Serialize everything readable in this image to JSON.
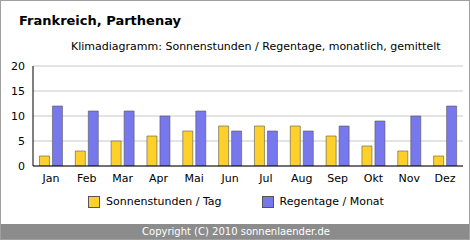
{
  "chart_data": {
    "type": "bar",
    "title": "Frankreich, Parthenay",
    "subtitle": "Klimadiagramm: Sonnenstunden / Regentage, monatlich, gemittelt",
    "annotations": [
      "Copyright (C) 2010 sonnenlaender.de"
    ],
    "categories": [
      "Jan",
      "Feb",
      "Mar",
      "Apr",
      "Mai",
      "Jun",
      "Jul",
      "Aug",
      "Sep",
      "Okt",
      "Nov",
      "Dez"
    ],
    "series": [
      {
        "name": "Sonnenstunden / Tag",
        "color": "#ffd02a",
        "values": [
          2,
          3,
          5,
          6,
          7,
          8,
          8,
          8,
          6,
          4,
          3,
          2
        ]
      },
      {
        "name": "Regentage / Monat",
        "color": "#7878ee",
        "values": [
          12,
          11,
          11,
          10,
          11,
          7,
          7,
          7,
          8,
          9,
          10,
          12
        ]
      }
    ],
    "ylim": [
      0,
      20
    ],
    "yticks": [
      0,
      5,
      10,
      15,
      20
    ],
    "grid": true,
    "legend": "bottom"
  }
}
